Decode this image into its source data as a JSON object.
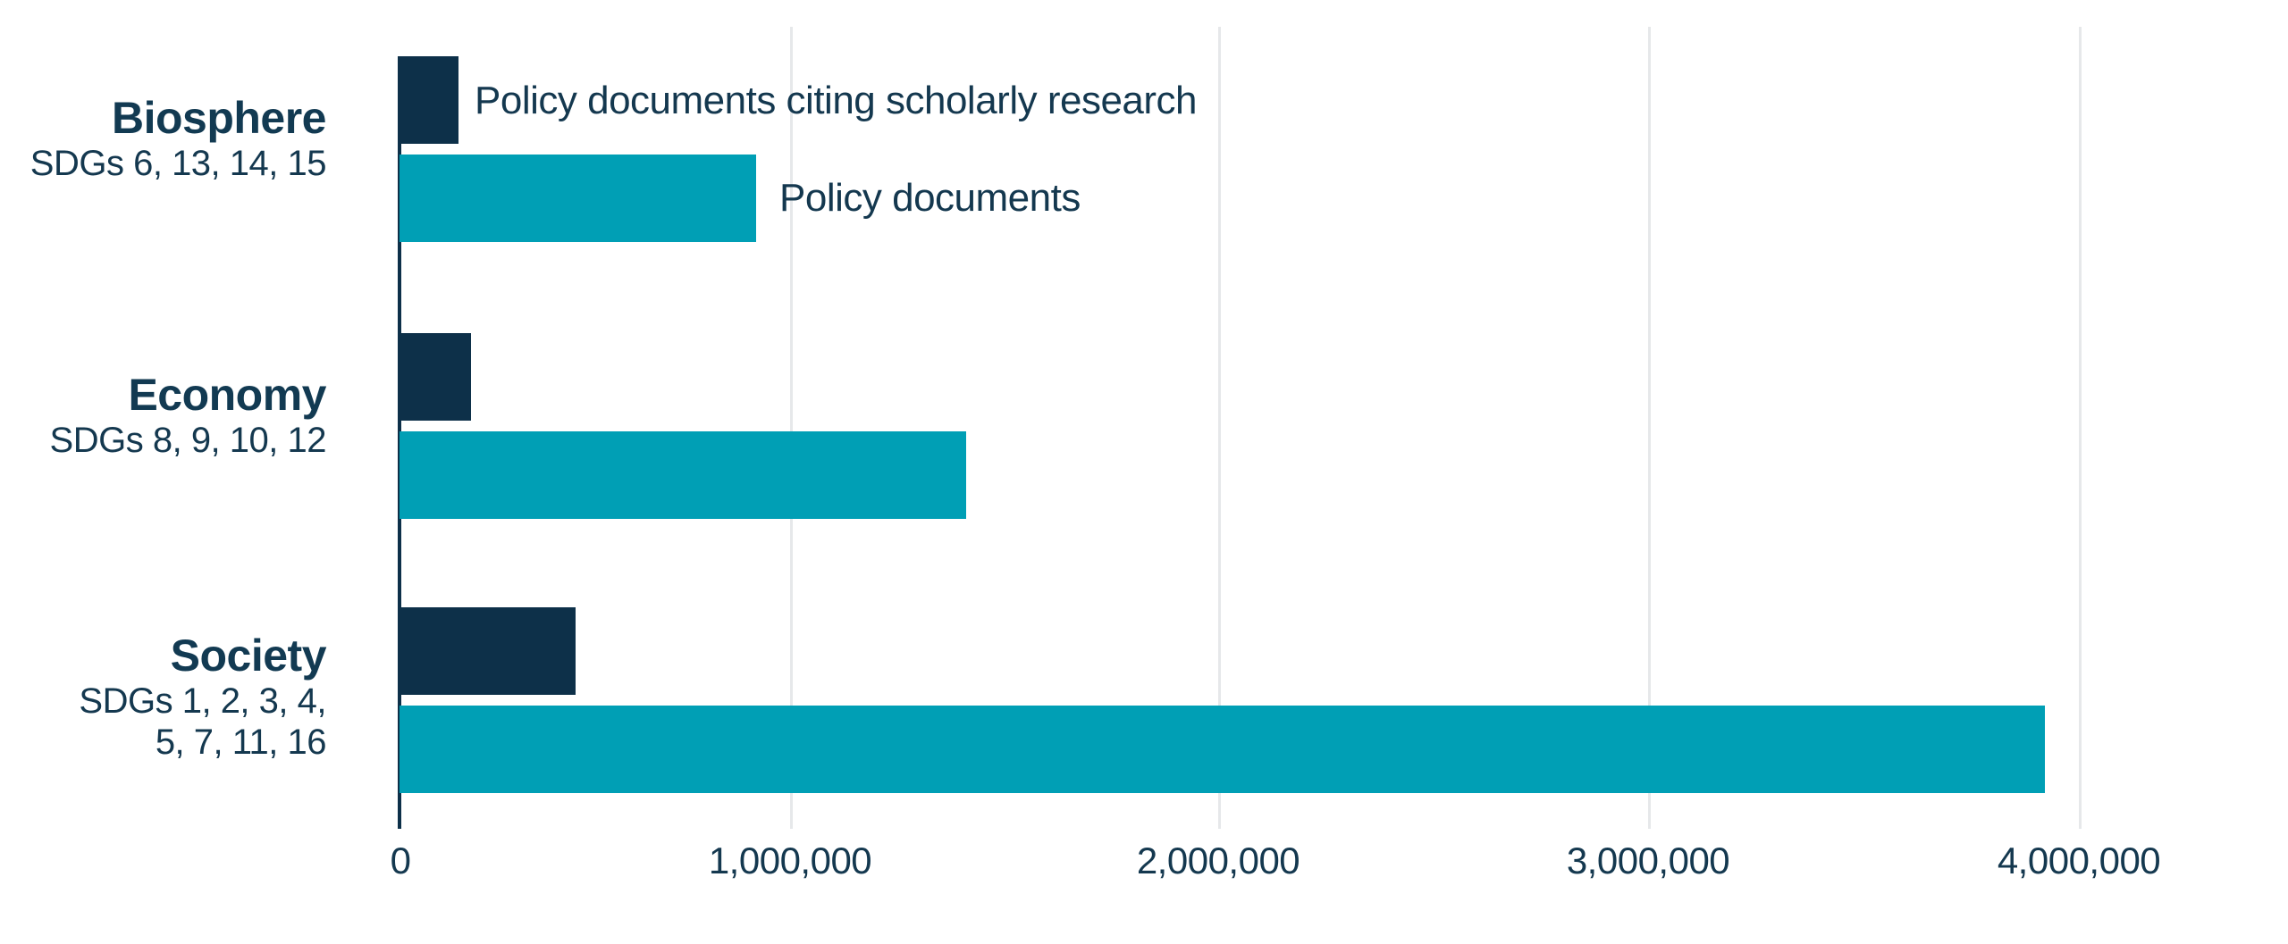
{
  "chart_data": {
    "type": "bar",
    "orientation": "horizontal",
    "title": "",
    "xlabel": "",
    "ylabel": "",
    "xlim": [
      0,
      4000000
    ],
    "grid": "vertical-light-gray",
    "legend_position": "inline-next-to-first-bars",
    "x_ticks": [
      "0",
      "1,000,000",
      "2,000,000",
      "3,000,000",
      "4,000,000"
    ],
    "x_tick_values": [
      0,
      1000000,
      2000000,
      3000000,
      4000000
    ],
    "categories": [
      {
        "title": "Biosphere",
        "subtitle_lines": [
          "SDGs 6, 13, 14, 15"
        ]
      },
      {
        "title": "Economy",
        "subtitle_lines": [
          "SDGs 8, 9, 10, 12"
        ]
      },
      {
        "title": "Society",
        "subtitle_lines": [
          "SDGs 1, 2, 3, 4,",
          "5, 7, 11, 16"
        ]
      }
    ],
    "series": [
      {
        "name": "Policy documents citing scholarly research",
        "color": "#0d3049",
        "values": [
          140000,
          170000,
          420000
        ]
      },
      {
        "name": "Policy documents",
        "color": "#009fb5",
        "values": [
          850000,
          1350000,
          3920000
        ]
      }
    ]
  },
  "colors": {
    "navy_bar": "#0d3049",
    "teal_bar": "#009fb5",
    "text_navy": "#14384f",
    "gridline_gray": "#e6e8ea",
    "background": "#ffffff"
  }
}
